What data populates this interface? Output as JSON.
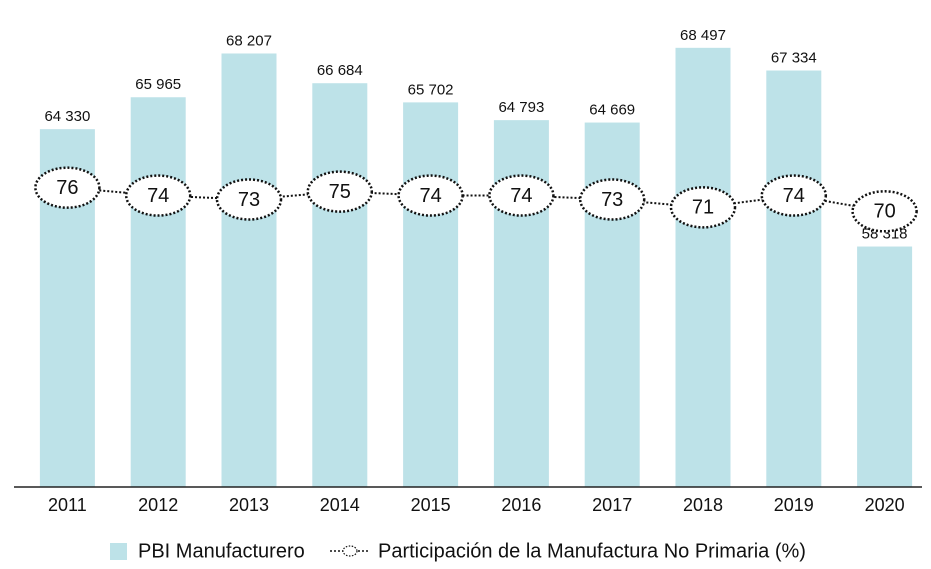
{
  "chart_data": {
    "type": "bar",
    "categories": [
      "2011",
      "2012",
      "2013",
      "2014",
      "2015",
      "2016",
      "2017",
      "2018",
      "2019",
      "2020"
    ],
    "series": [
      {
        "name": "PBI Manufacturero",
        "type": "bar",
        "color": "#bde2e8",
        "values": [
          64330,
          65965,
          68207,
          66684,
          65702,
          64793,
          64669,
          68497,
          67334,
          58318
        ],
        "value_labels": [
          "64 330",
          "65 965",
          "68 207",
          "66 684",
          "65 702",
          "64 793",
          "64 669",
          "68 497",
          "67 334",
          "58 318"
        ]
      },
      {
        "name": "Participación de la Manufactura No Primaria (%)",
        "type": "line",
        "axis": "y2",
        "color": "#111111",
        "values": [
          76,
          74,
          73,
          75,
          74,
          74,
          73,
          71,
          74,
          70
        ]
      }
    ],
    "ylim": [
      46000,
      69000
    ],
    "y2lim": [
      0,
      114
    ],
    "legend": "bottom"
  }
}
